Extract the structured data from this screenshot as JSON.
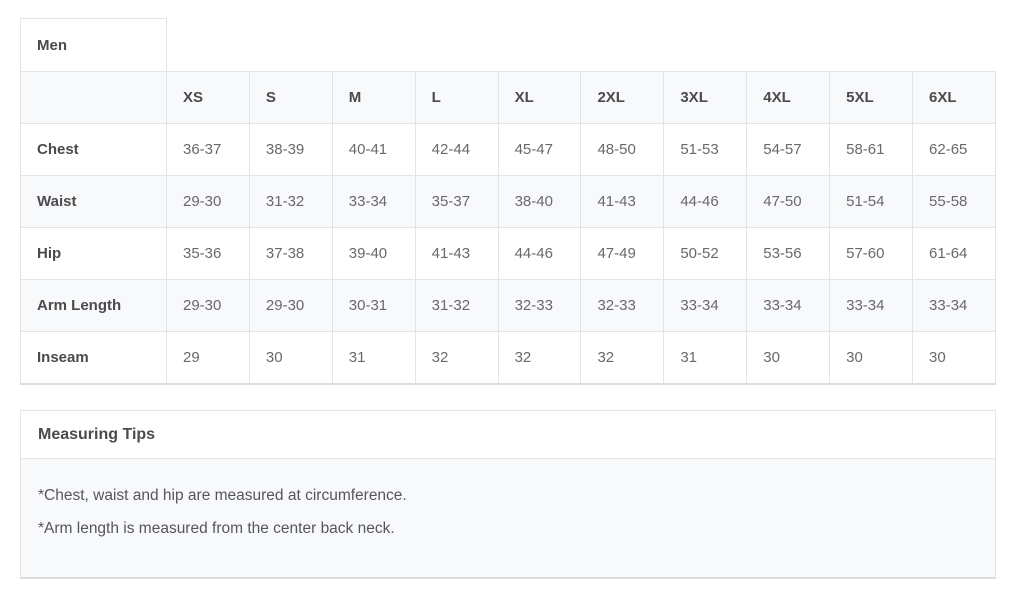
{
  "size_chart": {
    "gender_label": "Men",
    "sizes": [
      "XS",
      "S",
      "M",
      "L",
      "XL",
      "2XL",
      "3XL",
      "4XL",
      "5XL",
      "6XL"
    ],
    "rows": [
      {
        "label": "Chest",
        "values": [
          "36-37",
          "38-39",
          "40-41",
          "42-44",
          "45-47",
          "48-50",
          "51-53",
          "54-57",
          "58-61",
          "62-65"
        ]
      },
      {
        "label": "Waist",
        "values": [
          "29-30",
          "31-32",
          "33-34",
          "35-37",
          "38-40",
          "41-43",
          "44-46",
          "47-50",
          "51-54",
          "55-58"
        ]
      },
      {
        "label": "Hip",
        "values": [
          "35-36",
          "37-38",
          "39-40",
          "41-43",
          "44-46",
          "47-49",
          "50-52",
          "53-56",
          "57-60",
          "61-64"
        ]
      },
      {
        "label": "Arm Length",
        "values": [
          "29-30",
          "29-30",
          "30-31",
          "31-32",
          "32-33",
          "32-33",
          "33-34",
          "33-34",
          "33-34",
          "33-34"
        ]
      },
      {
        "label": "Inseam",
        "values": [
          "29",
          "30",
          "31",
          "32",
          "32",
          "32",
          "31",
          "30",
          "30",
          "30"
        ]
      }
    ]
  },
  "measuring_tips": {
    "title": "Measuring Tips",
    "tips": [
      "*Chest, waist and hip are measured at circumference.",
      "*Arm length is measured from the center back neck."
    ]
  },
  "colors": {
    "border": "#e3e4e6",
    "border_bottom": "#dcdddf",
    "stripe_background": "#f8f9fa",
    "heading_text": "#4a4b4d",
    "value_text": "#68696d"
  }
}
